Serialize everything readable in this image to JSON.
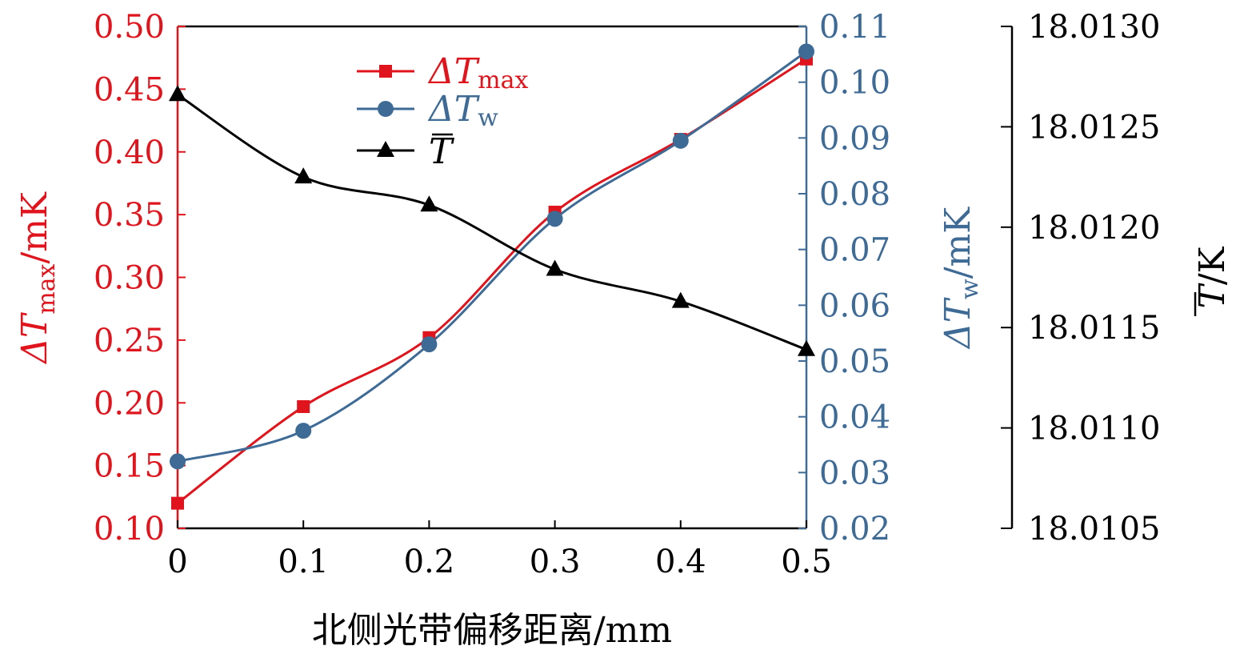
{
  "chart_data": {
    "type": "line",
    "x": [
      0,
      0.1,
      0.2,
      0.3,
      0.4,
      0.5
    ],
    "x_tick_labels": [
      "0",
      "0.1",
      "0.2",
      "0.3",
      "0.4",
      "0.5"
    ],
    "xlabel": "北侧光带偏移距离/mm",
    "xlim": [
      0,
      0.5
    ],
    "axes": {
      "left": {
        "label_main": "ΔT",
        "label_sub": "max",
        "label_unit": "/mK",
        "ylim": [
          0.1,
          0.5
        ],
        "ticks": [
          0.1,
          0.15,
          0.2,
          0.25,
          0.3,
          0.35,
          0.4,
          0.45,
          0.5
        ],
        "tick_labels": [
          "0.10",
          "0.15",
          "0.20",
          "0.25",
          "0.30",
          "0.35",
          "0.40",
          "0.45",
          "0.50"
        ],
        "color": "#e0141c"
      },
      "right1": {
        "label_main": "ΔT",
        "label_sub": "w",
        "label_unit": "/mK",
        "ylim": [
          0.02,
          0.11
        ],
        "ticks": [
          0.02,
          0.03,
          0.04,
          0.05,
          0.06,
          0.07,
          0.08,
          0.09,
          0.1,
          0.11
        ],
        "tick_labels": [
          "0.02",
          "0.03",
          "0.04",
          "0.05",
          "0.06",
          "0.07",
          "0.08",
          "0.09",
          "0.10",
          "0.11"
        ],
        "color": "#3e6a96"
      },
      "right2": {
        "label_main": "T",
        "label_unit": "/K",
        "ylim": [
          18.0105,
          18.013
        ],
        "ticks": [
          18.0105,
          18.011,
          18.0115,
          18.012,
          18.0125,
          18.013
        ],
        "tick_labels": [
          "18.0105",
          "18.0110",
          "18.0115",
          "18.0120",
          "18.0125",
          "18.0130"
        ],
        "color": "#000000"
      }
    },
    "series": [
      {
        "name": "ΔTmax",
        "legend_main": "ΔT",
        "legend_sub": "max",
        "axis": "left",
        "marker": "square",
        "color": "#e0141c",
        "values": [
          0.12,
          0.197,
          0.252,
          0.352,
          0.41,
          0.474
        ]
      },
      {
        "name": "ΔTw",
        "legend_main": "ΔT",
        "legend_sub": "w",
        "axis": "right1",
        "marker": "circle",
        "color": "#3e6a96",
        "values": [
          0.032,
          0.0375,
          0.053,
          0.0755,
          0.0895,
          0.1055
        ]
      },
      {
        "name": "T̄",
        "legend_main": "T",
        "axis": "right2",
        "marker": "triangle",
        "color": "#000000",
        "values": [
          18.01266,
          18.01225,
          18.01211,
          18.01179,
          18.01163,
          18.01139
        ]
      }
    ],
    "legend_position": "top-center",
    "grid": false
  }
}
